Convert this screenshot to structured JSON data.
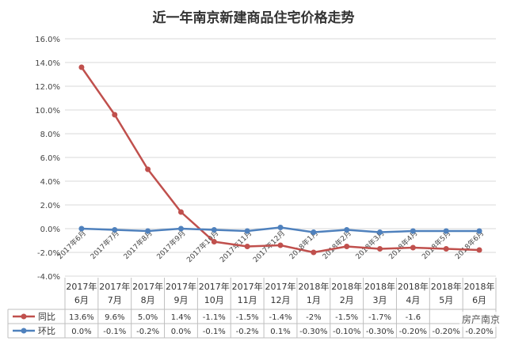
{
  "chart_data": {
    "type": "line",
    "title": "近一年南京新建商品住宅价格走势",
    "categories": [
      "2017年6月",
      "2017年7月",
      "2017年8月",
      "2017年9月",
      "2017年10月",
      "2017年11月",
      "2017年12月",
      "2018年1月",
      "2018年2月",
      "2018年3月",
      "2018年4月",
      "2018年5月",
      "2018年6月"
    ],
    "table_headers": [
      [
        "2017年",
        "6月"
      ],
      [
        "2017年",
        "7月"
      ],
      [
        "2017年",
        "8月"
      ],
      [
        "2017年",
        "9月"
      ],
      [
        "2017年",
        "10月"
      ],
      [
        "2017年",
        "11月"
      ],
      [
        "2017年",
        "12月"
      ],
      [
        "2018年",
        "1月"
      ],
      [
        "2018年",
        "2月"
      ],
      [
        "2018年",
        "3月"
      ],
      [
        "2018年",
        "4月"
      ],
      [
        "2018年",
        "5月"
      ],
      [
        "2018年",
        "6月"
      ]
    ],
    "y_ticks": [
      "16.0%",
      "14.0%",
      "12.0%",
      "10.0%",
      "8.0%",
      "6.0%",
      "4.0%",
      "2.0%",
      "0.0%",
      "-2.0%",
      "-4.0%"
    ],
    "ylim": [
      -4,
      16
    ],
    "grid": true,
    "legend": "table-left",
    "series": [
      {
        "name": "同比",
        "color": "#c0504d",
        "values": [
          13.6,
          9.6,
          5.0,
          1.4,
          -1.1,
          -1.5,
          -1.4,
          -2,
          -1.5,
          -1.7,
          -1.6,
          -1.7,
          -1.8
        ],
        "labels": [
          "13.6%",
          "9.6%",
          "5.0%",
          "1.4%",
          "-1.1%",
          "-1.5%",
          "-1.4%",
          "-2%",
          "-1.5%",
          "-1.7%",
          "-1.6",
          "",
          ""
        ]
      },
      {
        "name": "环比",
        "color": "#4f81bd",
        "values": [
          0.0,
          -0.1,
          -0.2,
          0.0,
          -0.1,
          -0.2,
          0.1,
          -0.3,
          -0.1,
          -0.3,
          -0.2,
          -0.2,
          -0.2
        ],
        "labels": [
          "0.0%",
          "-0.1%",
          "-0.2%",
          "0.0%",
          "-0.1%",
          "-0.2%",
          "0.1%",
          "-0.30%",
          "-0.10%",
          "-0.30%",
          "-0.20%",
          "-0.20%",
          "-0.20%"
        ]
      }
    ]
  },
  "watermark": "房产南京"
}
